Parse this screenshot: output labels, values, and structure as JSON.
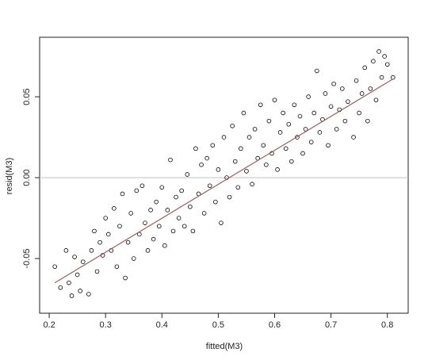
{
  "chart_data": {
    "type": "scatter",
    "x_label": "fitted(M3)",
    "y_label": "resid(M3)",
    "xlim": [
      0.183,
      0.837
    ],
    "ylim": [
      -0.0838,
      0.0868
    ],
    "xticks": [
      0.2,
      0.3,
      0.4,
      0.5,
      0.6,
      0.7,
      0.8
    ],
    "yticks": [
      {
        "value": -0.05,
        "label": "-0.05"
      },
      {
        "value": 0,
        "label": "0.00"
      },
      {
        "value": 0.05,
        "label": "0.05"
      }
    ],
    "color": "#000000",
    "reference_line": 0,
    "reference_color": "#c8c8c8",
    "x": [
      0.21,
      0.22,
      0.23,
      0.235,
      0.24,
      0.245,
      0.25,
      0.255,
      0.26,
      0.27,
      0.275,
      0.28,
      0.285,
      0.29,
      0.295,
      0.3,
      0.305,
      0.31,
      0.315,
      0.32,
      0.325,
      0.33,
      0.335,
      0.34,
      0.345,
      0.35,
      0.355,
      0.36,
      0.365,
      0.37,
      0.375,
      0.38,
      0.385,
      0.39,
      0.395,
      0.4,
      0.405,
      0.41,
      0.415,
      0.42,
      0.425,
      0.43,
      0.435,
      0.44,
      0.445,
      0.45,
      0.455,
      0.46,
      0.465,
      0.47,
      0.475,
      0.48,
      0.485,
      0.49,
      0.495,
      0.5,
      0.505,
      0.51,
      0.515,
      0.52,
      0.525,
      0.53,
      0.535,
      0.54,
      0.545,
      0.55,
      0.555,
      0.56,
      0.565,
      0.57,
      0.575,
      0.58,
      0.585,
      0.59,
      0.595,
      0.6,
      0.605,
      0.61,
      0.615,
      0.62,
      0.625,
      0.63,
      0.635,
      0.64,
      0.645,
      0.65,
      0.655,
      0.66,
      0.665,
      0.67,
      0.675,
      0.68,
      0.685,
      0.69,
      0.695,
      0.7,
      0.705,
      0.71,
      0.715,
      0.72,
      0.725,
      0.73,
      0.74,
      0.745,
      0.75,
      0.755,
      0.76,
      0.765,
      0.77,
      0.775,
      0.78,
      0.785,
      0.79,
      0.795,
      0.8,
      0.81
    ],
    "values": [
      -0.055,
      -0.068,
      -0.045,
      -0.065,
      -0.073,
      -0.049,
      -0.06,
      -0.07,
      -0.052,
      -0.072,
      -0.045,
      -0.033,
      -0.058,
      -0.04,
      -0.048,
      -0.025,
      -0.035,
      -0.045,
      -0.019,
      -0.055,
      -0.03,
      -0.01,
      -0.062,
      -0.04,
      -0.022,
      -0.05,
      -0.008,
      -0.035,
      -0.005,
      -0.028,
      -0.045,
      -0.02,
      -0.038,
      -0.015,
      -0.03,
      -0.006,
      -0.042,
      -0.02,
      0.011,
      -0.033,
      -0.012,
      -0.025,
      -0.008,
      -0.03,
      0.002,
      -0.018,
      -0.033,
      0.018,
      -0.01,
      0.008,
      -0.022,
      0.012,
      -0.005,
      0.02,
      -0.015,
      0.005,
      -0.028,
      0.025,
      0.0,
      -0.012,
      0.032,
      0.01,
      -0.006,
      0.018,
      0.04,
      0.004,
      0.025,
      -0.004,
      0.03,
      0.012,
      0.045,
      0.02,
      0.008,
      0.035,
      0.015,
      0.048,
      0.005,
      0.028,
      0.04,
      0.018,
      0.033,
      0.01,
      0.045,
      0.025,
      0.038,
      0.015,
      0.03,
      0.05,
      0.022,
      0.04,
      0.066,
      0.028,
      0.036,
      0.052,
      0.02,
      0.044,
      0.058,
      0.03,
      0.042,
      0.055,
      0.035,
      0.047,
      0.025,
      0.06,
      0.04,
      0.052,
      0.068,
      0.035,
      0.055,
      0.072,
      0.048,
      0.078,
      0.062,
      0.075,
      0.07,
      0.062
    ],
    "fit": {
      "x": [
        0.21,
        0.81
      ],
      "values": [
        -0.065,
        0.061
      ],
      "color": "#a05a5a"
    }
  }
}
